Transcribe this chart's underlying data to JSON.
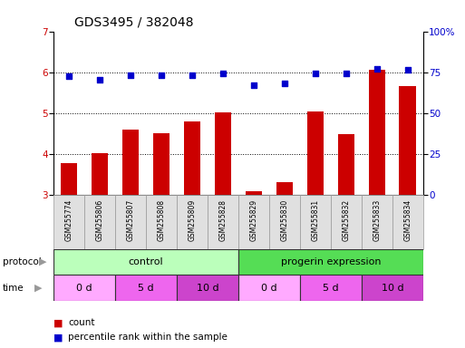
{
  "title": "GDS3495 / 382048",
  "samples": [
    "GSM255774",
    "GSM255806",
    "GSM255807",
    "GSM255808",
    "GSM255809",
    "GSM255828",
    "GSM255829",
    "GSM255830",
    "GSM255831",
    "GSM255832",
    "GSM255833",
    "GSM255834"
  ],
  "bar_values": [
    3.78,
    4.01,
    4.6,
    4.5,
    4.8,
    5.02,
    3.1,
    3.32,
    5.05,
    4.48,
    6.05,
    5.65
  ],
  "dot_values": [
    5.9,
    5.82,
    5.93,
    5.92,
    5.93,
    5.98,
    5.68,
    5.72,
    5.98,
    5.96,
    6.08,
    6.07
  ],
  "bar_color": "#cc0000",
  "dot_color": "#0000cc",
  "ylim_left": [
    3,
    7
  ],
  "ylim_right": [
    0,
    100
  ],
  "yticks_left": [
    3,
    4,
    5,
    6,
    7
  ],
  "yticks_right": [
    0,
    25,
    50,
    75,
    100
  ],
  "ytick_labels_right": [
    "0",
    "25",
    "50",
    "75",
    "100%"
  ],
  "protocol_control_label": "control",
  "protocol_progerin_label": "progerin expression",
  "protocol_control_color": "#bbffbb",
  "protocol_progerin_color": "#55dd55",
  "time_0d_color": "#ffaaff",
  "time_5d_color": "#ee66ee",
  "time_10d_color": "#cc44cc",
  "legend_count_label": "count",
  "legend_pct_label": "percentile rank within the sample",
  "background_color": "#ffffff",
  "plot_bg_color": "#ffffff",
  "title_fontsize": 10,
  "tick_fontsize": 7.5,
  "label_fontsize": 8.5,
  "sample_fontsize": 5.5
}
